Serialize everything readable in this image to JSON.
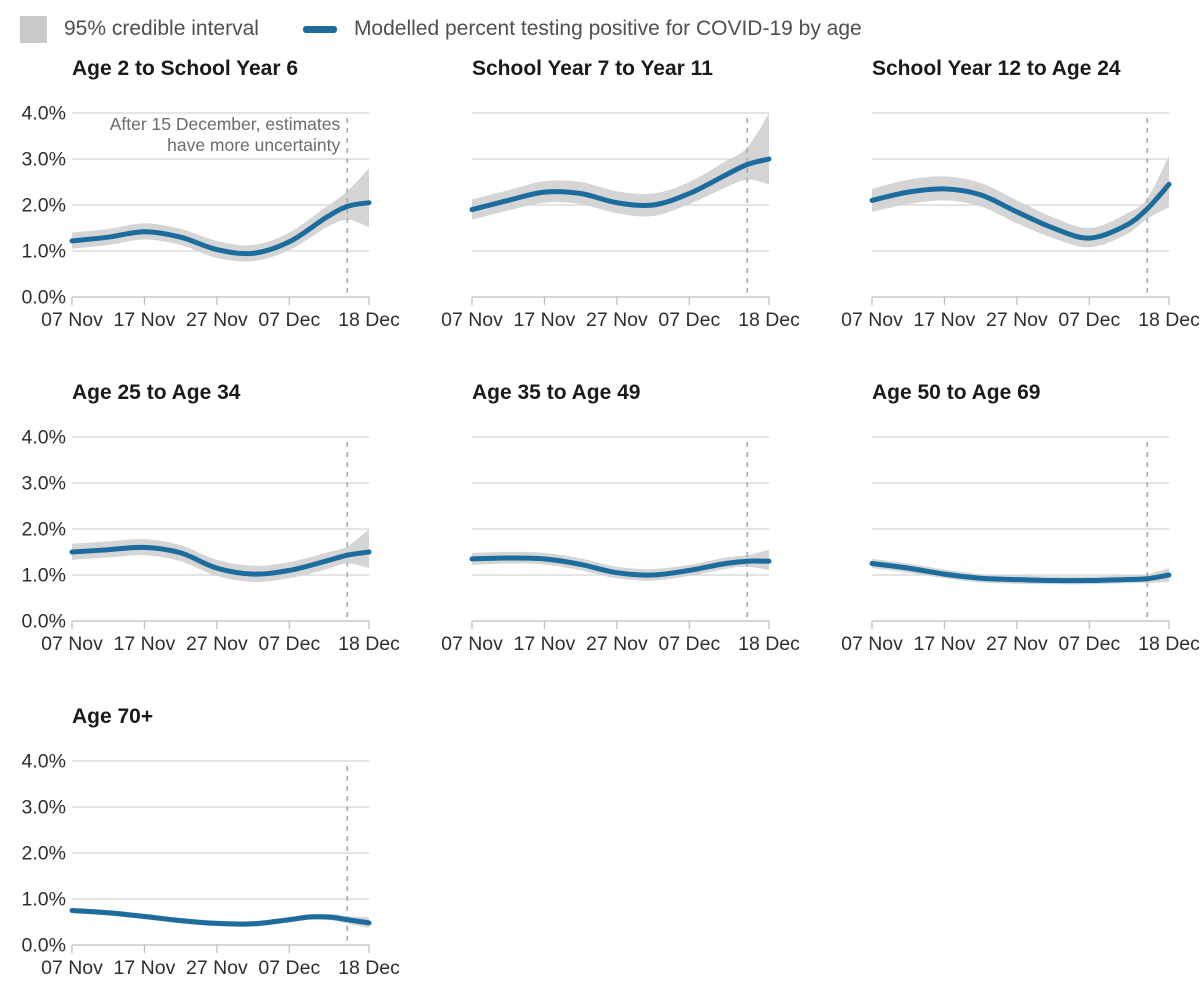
{
  "legend": {
    "ci_label": "95% credible interval",
    "line_label": "Modelled percent testing positive for COVID-19 by age"
  },
  "colors": {
    "line": "#1d6c9e",
    "band": "#d5d5d5",
    "grid": "#d3d3d3",
    "axis": "#bfbfbf",
    "dashed": "#ababab",
    "title": "#1a1a1a",
    "axis_text": "#2e2e2e",
    "annotation_text": "#6b6b6b",
    "legend_swatch": "#c9c9c9",
    "legend_text": "#4f4f4f"
  },
  "axis": {
    "x_start_label": "07 Nov",
    "x_range_days": 41,
    "x_tick_days": [
      0,
      10,
      20,
      30,
      41
    ],
    "x_tick_labels": [
      "07 Nov",
      "17 Nov",
      "27 Nov",
      "07 Dec",
      "18 Dec"
    ],
    "y_ticks": [
      0,
      1,
      2,
      3,
      4
    ],
    "y_tick_labels": [
      "0.0%",
      "1.0%",
      "2.0%",
      "3.0%",
      "4.0%"
    ],
    "ylim": [
      0,
      4
    ],
    "dashed_vline_day": 38,
    "dashed_vline_date": "15 Dec"
  },
  "annotation": {
    "panel_index": 0,
    "line1": "After 15 December, estimates",
    "line2": "have more uncertainty"
  },
  "chart_data": [
    {
      "type": "line",
      "title": "Age 2 to School Year 6",
      "show_y_axis": true,
      "x_days": [
        0,
        5,
        10,
        15,
        20,
        25,
        30,
        35,
        38,
        41
      ],
      "mean": [
        1.22,
        1.3,
        1.42,
        1.3,
        1.03,
        0.95,
        1.2,
        1.72,
        1.97,
        2.05
      ],
      "lower": [
        1.05,
        1.13,
        1.25,
        1.13,
        0.85,
        0.78,
        1.02,
        1.5,
        1.68,
        1.52
      ],
      "upper": [
        1.4,
        1.48,
        1.6,
        1.48,
        1.22,
        1.13,
        1.4,
        1.95,
        2.3,
        2.8
      ]
    },
    {
      "type": "line",
      "title": "School Year 7 to Year 11",
      "show_y_axis": false,
      "x_days": [
        0,
        5,
        10,
        15,
        20,
        25,
        30,
        35,
        38,
        41
      ],
      "mean": [
        1.9,
        2.1,
        2.28,
        2.25,
        2.05,
        2.0,
        2.25,
        2.65,
        2.88,
        3.0
      ],
      "lower": [
        1.68,
        1.88,
        2.05,
        2.02,
        1.82,
        1.76,
        2.02,
        2.38,
        2.55,
        2.45
      ],
      "upper": [
        2.12,
        2.32,
        2.52,
        2.5,
        2.3,
        2.25,
        2.5,
        2.95,
        3.25,
        4.0
      ]
    },
    {
      "type": "line",
      "title": "School Year 12 to Age 24",
      "show_y_axis": false,
      "x_days": [
        0,
        5,
        10,
        15,
        20,
        25,
        30,
        35,
        38,
        41
      ],
      "mean": [
        2.1,
        2.28,
        2.35,
        2.22,
        1.85,
        1.5,
        1.28,
        1.55,
        1.92,
        2.45
      ],
      "lower": [
        1.85,
        2.02,
        2.1,
        1.97,
        1.6,
        1.28,
        1.08,
        1.35,
        1.7,
        1.95
      ],
      "upper": [
        2.35,
        2.55,
        2.62,
        2.48,
        2.1,
        1.73,
        1.5,
        1.8,
        2.15,
        3.08
      ]
    },
    {
      "type": "line",
      "title": "Age 25 to Age 34",
      "show_y_axis": true,
      "x_days": [
        0,
        5,
        10,
        15,
        20,
        25,
        30,
        35,
        38,
        41
      ],
      "mean": [
        1.5,
        1.55,
        1.6,
        1.48,
        1.15,
        1.02,
        1.1,
        1.3,
        1.43,
        1.5
      ],
      "lower": [
        1.33,
        1.38,
        1.43,
        1.3,
        0.98,
        0.85,
        0.93,
        1.12,
        1.25,
        1.15
      ],
      "upper": [
        1.68,
        1.73,
        1.78,
        1.65,
        1.33,
        1.2,
        1.28,
        1.48,
        1.62,
        2.0
      ]
    },
    {
      "type": "line",
      "title": "Age 35 to Age 49",
      "show_y_axis": false,
      "x_days": [
        0,
        5,
        10,
        15,
        20,
        25,
        30,
        35,
        38,
        41
      ],
      "mean": [
        1.35,
        1.37,
        1.35,
        1.23,
        1.05,
        1.0,
        1.1,
        1.25,
        1.3,
        1.3
      ],
      "lower": [
        1.22,
        1.25,
        1.23,
        1.1,
        0.93,
        0.88,
        0.98,
        1.13,
        1.18,
        1.1
      ],
      "upper": [
        1.48,
        1.5,
        1.48,
        1.36,
        1.18,
        1.13,
        1.22,
        1.38,
        1.43,
        1.55
      ]
    },
    {
      "type": "line",
      "title": "Age 50 to Age 69",
      "show_y_axis": false,
      "x_days": [
        0,
        5,
        10,
        15,
        20,
        25,
        30,
        35,
        38,
        41
      ],
      "mean": [
        1.25,
        1.15,
        1.02,
        0.93,
        0.9,
        0.88,
        0.88,
        0.9,
        0.92,
        1.0
      ],
      "lower": [
        1.15,
        1.05,
        0.93,
        0.84,
        0.81,
        0.8,
        0.8,
        0.82,
        0.83,
        0.85
      ],
      "upper": [
        1.35,
        1.25,
        1.12,
        1.02,
        0.99,
        0.97,
        0.97,
        0.99,
        1.02,
        1.15
      ]
    },
    {
      "type": "line",
      "title": "Age 70+",
      "show_y_axis": true,
      "x_days": [
        0,
        5,
        10,
        15,
        20,
        25,
        30,
        33,
        36,
        38,
        41
      ],
      "mean": [
        0.75,
        0.7,
        0.62,
        0.53,
        0.47,
        0.46,
        0.55,
        0.61,
        0.6,
        0.55,
        0.48
      ],
      "lower": [
        0.69,
        0.64,
        0.56,
        0.47,
        0.41,
        0.4,
        0.49,
        0.55,
        0.53,
        0.47,
        0.37
      ],
      "upper": [
        0.81,
        0.76,
        0.68,
        0.59,
        0.53,
        0.52,
        0.61,
        0.67,
        0.67,
        0.63,
        0.6
      ]
    }
  ]
}
